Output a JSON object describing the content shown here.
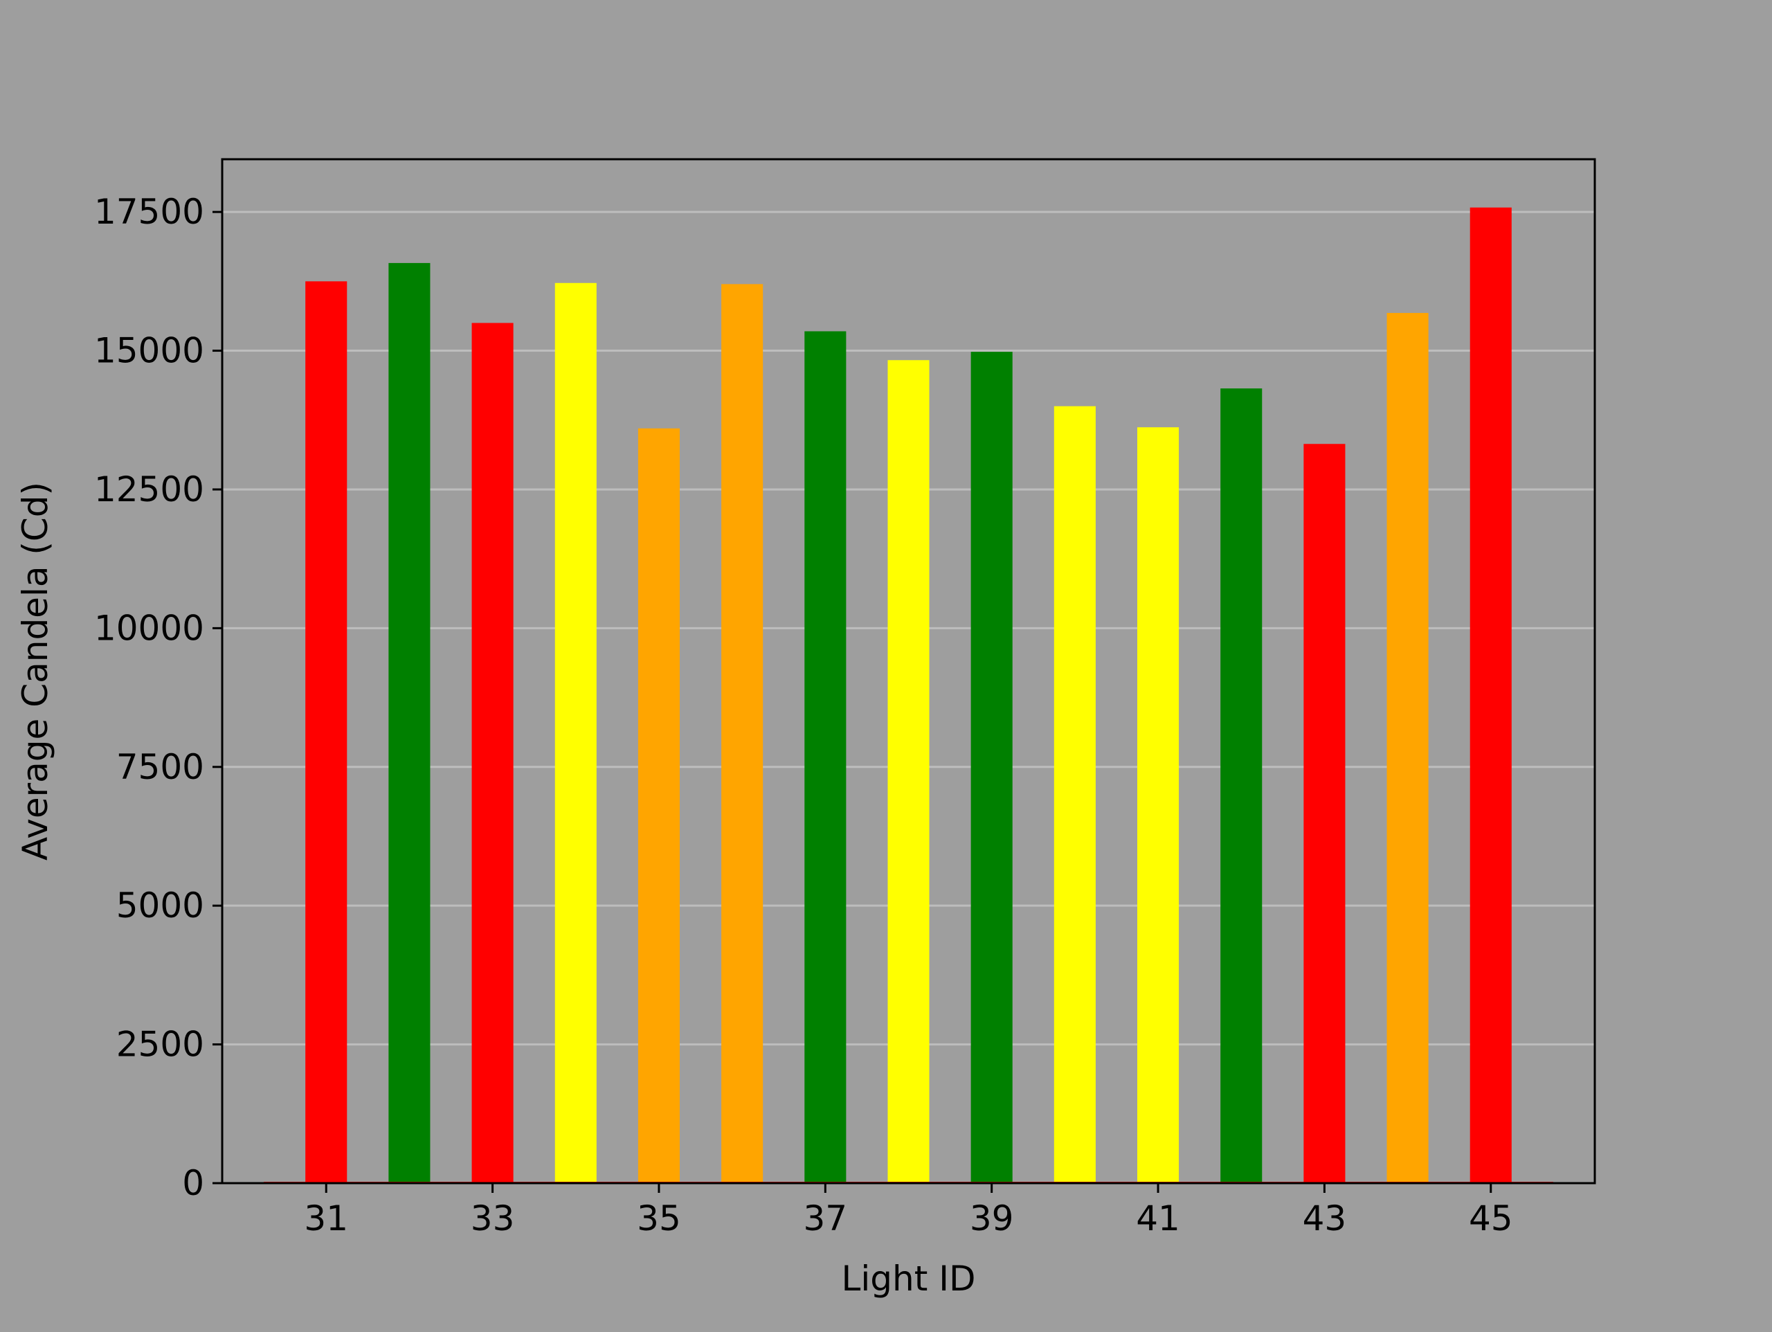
{
  "chart_data": {
    "type": "bar",
    "title": "",
    "xlabel": "Light ID",
    "ylabel": "Average Candela (Cd)",
    "x": [
      31,
      32,
      33,
      34,
      35,
      36,
      37,
      38,
      39,
      40,
      41,
      42,
      43,
      44,
      45
    ],
    "values": [
      16250,
      16580,
      15500,
      16220,
      13600,
      16200,
      15350,
      14830,
      14980,
      14000,
      13620,
      14320,
      13320,
      15680,
      17580
    ],
    "bar_colors": [
      "#ff0000",
      "#008000",
      "#ff0000",
      "#ffff00",
      "#ffa500",
      "#ffa500",
      "#008000",
      "#ffff00",
      "#008000",
      "#ffff00",
      "#ffff00",
      "#008000",
      "#ff0000",
      "#ffa500",
      "#ff0000"
    ],
    "xticks": [
      31,
      33,
      35,
      37,
      39,
      41,
      43,
      45
    ],
    "yticks": [
      0,
      2500,
      5000,
      7500,
      10000,
      12500,
      15000,
      17500
    ],
    "ylim": [
      0,
      18450
    ],
    "xlim": [
      29.75,
      46.25
    ],
    "bar_width": 0.5,
    "grid": "horizontal",
    "legend": "none",
    "colors": {
      "background": "#9e9e9e",
      "grid": "#bdbdbd",
      "axes": "#000000",
      "baseline": "#ff0000"
    }
  }
}
